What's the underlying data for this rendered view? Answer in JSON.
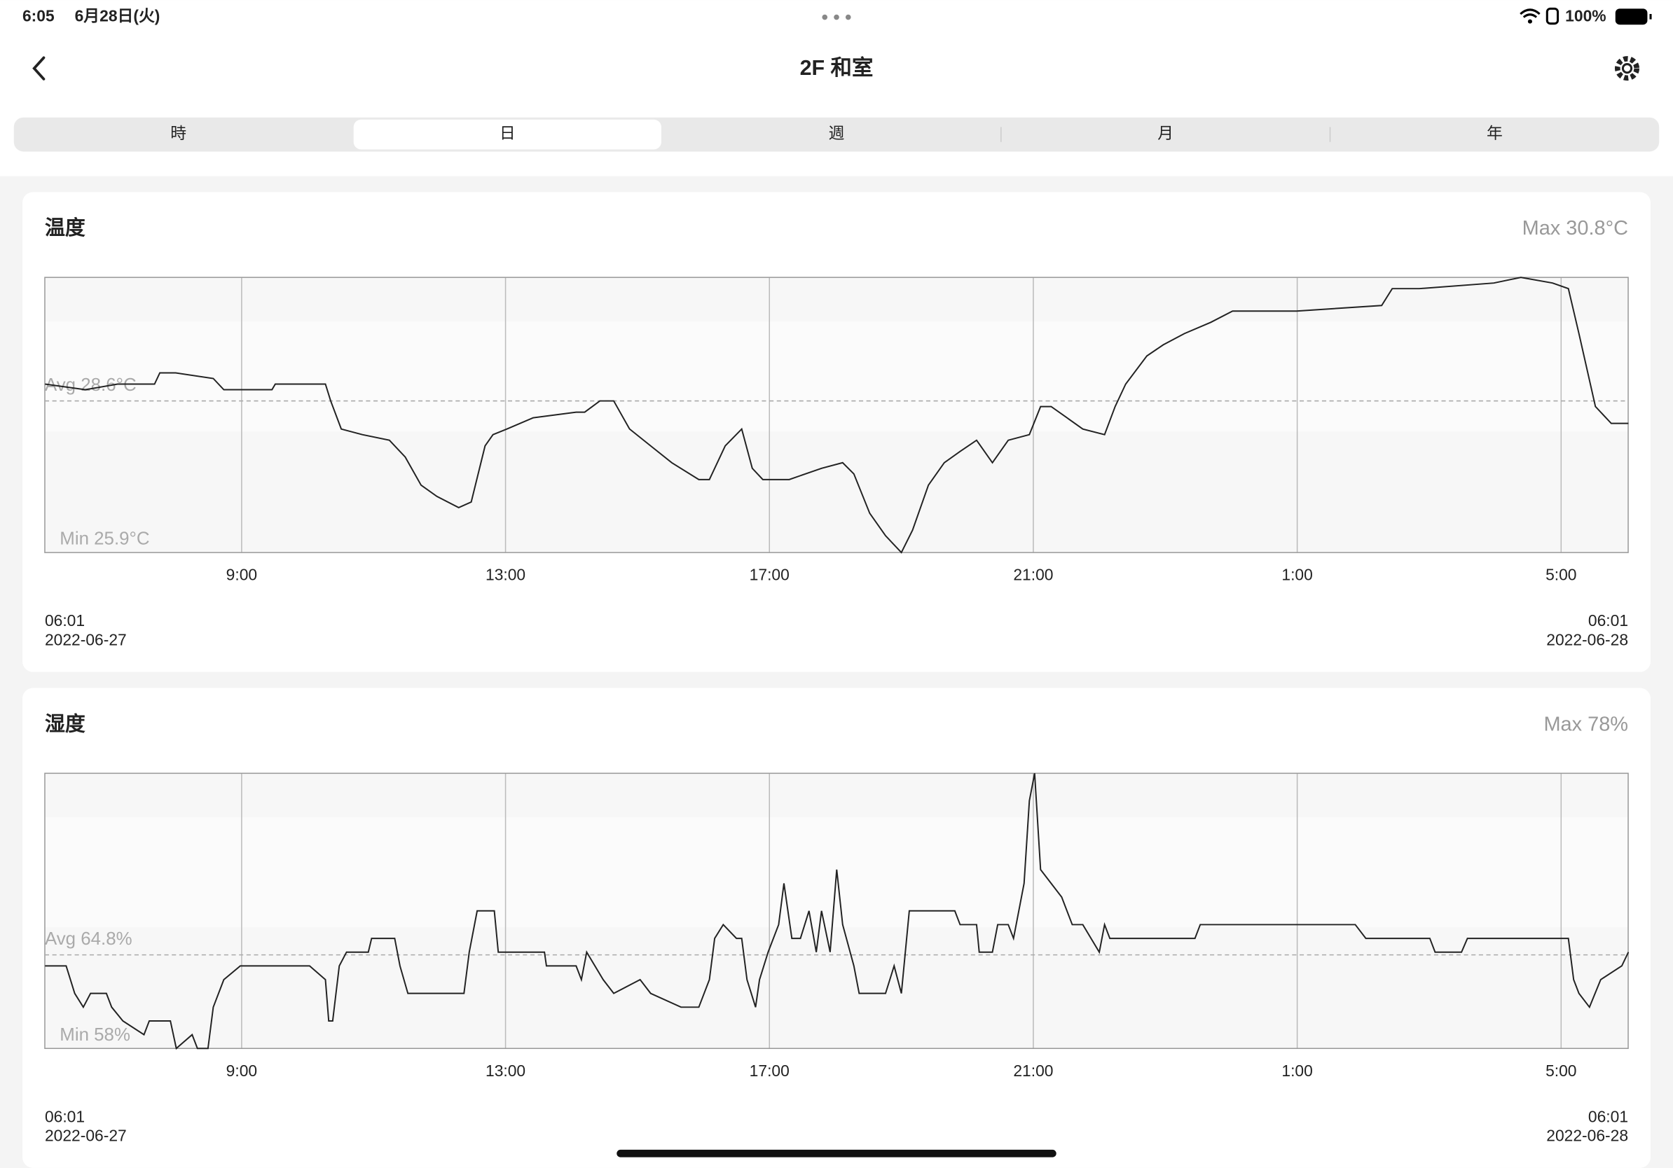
{
  "status_bar": {
    "time": "6:05",
    "date": "6月28日(火)",
    "battery": "100%"
  },
  "header": {
    "title": "2F 和室"
  },
  "tabs": [
    "時",
    "日",
    "週",
    "月",
    "年"
  ],
  "selected_tab": 1,
  "chart_data": [
    {
      "type": "line",
      "title": "温度",
      "max_label": "Max 30.8°C",
      "min_label": "Min 25.9°C",
      "avg_label": "Avg 28.6°C",
      "avg": 28.6,
      "color": "#222222",
      "xlim": [
        6.0167,
        30.0167
      ],
      "xticks": [
        {
          "value": 9,
          "label": "9:00"
        },
        {
          "value": 13,
          "label": "13:00"
        },
        {
          "value": 17,
          "label": "17:00"
        },
        {
          "value": 21,
          "label": "21:00"
        },
        {
          "value": 25,
          "label": "1:00"
        },
        {
          "value": 29,
          "label": "5:00"
        }
      ],
      "ylim": [
        25.9,
        30.8
      ],
      "x_start": {
        "time": "06:01",
        "date": "2022-06-27"
      },
      "x_end": {
        "time": "06:01",
        "date": "2022-06-28"
      },
      "x": [
        6.02,
        6.63,
        7.12,
        7.68,
        7.76,
        8.0,
        8.57,
        8.73,
        9.46,
        9.51,
        10.27,
        10.35,
        10.51,
        10.83,
        11.24,
        11.48,
        11.72,
        11.96,
        12.29,
        12.48,
        12.69,
        12.81,
        13.02,
        13.42,
        14.07,
        14.2,
        14.43,
        14.64,
        14.88,
        15.2,
        15.52,
        15.93,
        16.09,
        16.33,
        16.58,
        16.74,
        16.9,
        17.3,
        17.79,
        18.11,
        18.28,
        18.52,
        18.76,
        19.0,
        19.17,
        19.41,
        19.65,
        19.89,
        20.14,
        20.38,
        20.62,
        20.94,
        21.11,
        21.27,
        21.51,
        21.75,
        22.08,
        22.24,
        22.4,
        22.72,
        22.97,
        23.29,
        23.69,
        24.02,
        24.99,
        26.28,
        26.44,
        26.85,
        27.98,
        28.39,
        28.87,
        29.11,
        29.27,
        29.52,
        29.76,
        30.02
      ],
      "values": [
        28.9,
        28.8,
        28.9,
        28.9,
        29.1,
        29.1,
        29.0,
        28.8,
        28.8,
        28.9,
        28.9,
        28.6,
        28.1,
        28.0,
        27.9,
        27.6,
        27.1,
        26.9,
        26.7,
        26.8,
        27.8,
        28.0,
        28.1,
        28.3,
        28.4,
        28.4,
        28.6,
        28.6,
        28.1,
        27.8,
        27.5,
        27.2,
        27.2,
        27.8,
        28.1,
        27.4,
        27.2,
        27.2,
        27.4,
        27.5,
        27.3,
        26.6,
        26.2,
        25.9,
        26.3,
        27.1,
        27.5,
        27.7,
        27.9,
        27.5,
        27.9,
        28.0,
        28.5,
        28.5,
        28.3,
        28.1,
        28.0,
        28.5,
        28.9,
        29.4,
        29.6,
        29.8,
        30.0,
        30.2,
        30.2,
        30.3,
        30.6,
        30.6,
        30.7,
        30.8,
        30.7,
        30.6,
        29.8,
        28.5,
        28.2,
        28.2
      ]
    },
    {
      "type": "line",
      "title": "湿度",
      "max_label": "Max 78%",
      "min_label": "Min 58%",
      "avg_label": "Avg 64.8%",
      "avg": 64.8,
      "color": "#222222",
      "xlim": [
        6.0167,
        30.0167
      ],
      "xticks": [
        {
          "value": 9,
          "label": "9:00"
        },
        {
          "value": 13,
          "label": "13:00"
        },
        {
          "value": 17,
          "label": "17:00"
        },
        {
          "value": 21,
          "label": "21:00"
        },
        {
          "value": 25,
          "label": "1:00"
        },
        {
          "value": 29,
          "label": "5:00"
        }
      ],
      "ylim": [
        58,
        78
      ],
      "x_start": {
        "time": "06:01",
        "date": "2022-06-27"
      },
      "x_end": {
        "time": "06:01",
        "date": "2022-06-28"
      },
      "x": [
        6.02,
        6.34,
        6.47,
        6.6,
        6.71,
        6.95,
        7.03,
        7.2,
        7.52,
        7.6,
        7.92,
        8.01,
        8.25,
        8.33,
        8.49,
        8.57,
        8.73,
        8.98,
        10.03,
        10.27,
        10.32,
        10.38,
        10.48,
        10.59,
        10.92,
        10.97,
        11.32,
        11.4,
        11.52,
        12.37,
        12.45,
        12.57,
        12.83,
        12.89,
        12.94,
        13.59,
        13.62,
        14.07,
        14.15,
        14.23,
        14.48,
        14.64,
        15.04,
        15.2,
        15.66,
        15.93,
        16.09,
        16.17,
        16.3,
        16.5,
        16.58,
        16.66,
        16.79,
        16.85,
        16.98,
        17.14,
        17.22,
        17.34,
        17.47,
        17.6,
        17.71,
        17.79,
        17.92,
        18.02,
        18.11,
        18.28,
        18.36,
        18.76,
        18.89,
        19.0,
        19.12,
        19.81,
        19.89,
        20.14,
        20.18,
        20.38,
        20.46,
        20.62,
        20.7,
        20.86,
        20.94,
        21.02,
        21.11,
        21.27,
        21.43,
        21.59,
        21.75,
        22.0,
        22.08,
        22.16,
        22.4,
        23.45,
        23.53,
        25.88,
        26.04,
        27.01,
        27.09,
        27.49,
        27.58,
        29.11,
        29.19,
        29.27,
        29.43,
        29.6,
        29.92,
        30.02
      ],
      "values": [
        64,
        64,
        62,
        61,
        62,
        62,
        61,
        60,
        59,
        60,
        60,
        58,
        59,
        58,
        58,
        61,
        63,
        64,
        64,
        63,
        60,
        60,
        64,
        65,
        65,
        66,
        66,
        64,
        62,
        62,
        65,
        68,
        68,
        65,
        65,
        65,
        64,
        64,
        63,
        65,
        63,
        62,
        63,
        62,
        61,
        61,
        63,
        66,
        67,
        66,
        66,
        63,
        61,
        63,
        65,
        67,
        70,
        66,
        66,
        68,
        65,
        68,
        65,
        71,
        67,
        64,
        62,
        62,
        64,
        62,
        68,
        68,
        67,
        67,
        65,
        65,
        67,
        67,
        66,
        70,
        76,
        78,
        71,
        70,
        69,
        67,
        67,
        65,
        67,
        66,
        66,
        66,
        67,
        67,
        66,
        66,
        65,
        65,
        66,
        66,
        63,
        62,
        61,
        63,
        64,
        65
      ]
    }
  ]
}
